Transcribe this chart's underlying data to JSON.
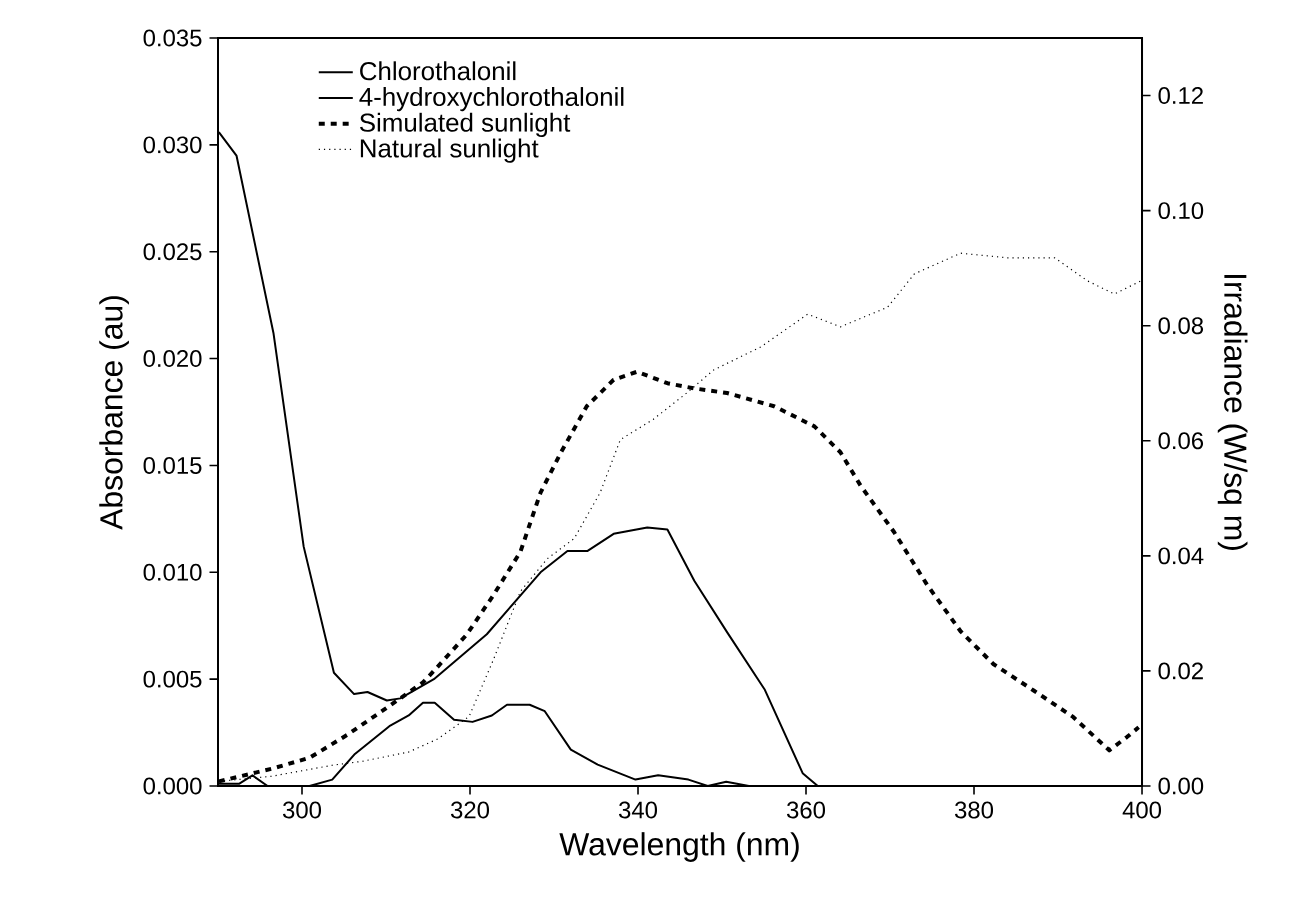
{
  "chart_data": {
    "type": "line",
    "xlabel": "Wavelength (nm)",
    "ylabel": "Absorbance (au)",
    "y2label": "Irradiance (W/sq m)",
    "xlim": [
      290,
      400
    ],
    "xticks": [
      300,
      320,
      340,
      360,
      380,
      400
    ],
    "ylim": [
      0,
      0.035
    ],
    "yticks": [
      {
        "value": 0,
        "label": "0.000"
      },
      {
        "value": 0.005,
        "label": "0.005"
      },
      {
        "value": 0.01,
        "label": "0.010"
      },
      {
        "value": 0.015,
        "label": "0.015"
      },
      {
        "value": 0.02,
        "label": "0.020"
      },
      {
        "value": 0.025,
        "label": "0.025"
      },
      {
        "value": 0.03,
        "label": "0.030"
      },
      {
        "value": 0.035,
        "label": "0.035"
      }
    ],
    "y2lim": [
      0,
      0.13
    ],
    "y2ticks": [
      {
        "value": 0,
        "label": "0.00"
      },
      {
        "value": 0.02,
        "label": "0.02"
      },
      {
        "value": 0.04,
        "label": "0.04"
      },
      {
        "value": 0.06,
        "label": "0.06"
      },
      {
        "value": 0.08,
        "label": "0.08"
      },
      {
        "value": 0.1,
        "label": "0.10"
      },
      {
        "value": 0.12,
        "label": "0.12"
      }
    ],
    "legend": "top left",
    "marker": "none",
    "grid": false,
    "series": [
      {
        "name": "Chlorothalonil",
        "color": "#000000",
        "line_style": "solid",
        "x": [
          290.1,
          292.5,
          294.1,
          295.9,
          300.9,
          303.6,
          306.3,
          310.4,
          312.7,
          314.4,
          315.8,
          318.1,
          320.3,
          322.6,
          324.4,
          327.1,
          328.9,
          332,
          335.2,
          339.7,
          342.4,
          346,
          348.3,
          350.5,
          353.2,
          360
        ],
        "values": [
          0.0001,
          0.0001,
          0.0005,
          0,
          0,
          0.0003,
          0.0015,
          0.0028,
          0.0033,
          0.0039,
          0.0039,
          0.0031,
          0.003,
          0.0033,
          0.0038,
          0.0038,
          0.0035,
          0.0017,
          0.001,
          0.0003,
          0.0005,
          0.0003,
          0,
          0.0002,
          0,
          0
        ]
      },
      {
        "name": "4-hydroxychlorothalonil",
        "color": "#000000",
        "line_style": "solid",
        "x": [
          290.1,
          292.2,
          296.6,
          300.2,
          303.8,
          306.2,
          307.8,
          310.1,
          311.7,
          315.7,
          322,
          328.4,
          331.6,
          334,
          337.1,
          341.1,
          343.5,
          346.7,
          350.6,
          355.1,
          359.6,
          361.4
        ],
        "values": [
          0.0306,
          0.0295,
          0.0212,
          0.0112,
          0.0053,
          0.0043,
          0.0044,
          0.004,
          0.0041,
          0.005,
          0.0071,
          0.01,
          0.011,
          0.011,
          0.0118,
          0.0121,
          0.012,
          0.0096,
          0.0072,
          0.0045,
          0.0006,
          0
        ]
      },
      {
        "name": "Simulated sunlight",
        "color": "#000000",
        "line_style": "dashed",
        "axis": "y2",
        "x": [
          290.1,
          296.4,
          300.9,
          305.4,
          309.9,
          314.4,
          315.7,
          319.6,
          322.8,
          326,
          328.4,
          330.8,
          333.9,
          337.1,
          339.9,
          343.5,
          346.7,
          350.6,
          356.2,
          361,
          364.1,
          366.5,
          370.5,
          374.4,
          378.4,
          382.3,
          387.1,
          391.8,
          396.1,
          398.2,
          399.6
        ],
        "values": [
          0.0008,
          0.003,
          0.0049,
          0.0089,
          0.0134,
          0.018,
          0.02,
          0.0263,
          0.0332,
          0.0407,
          0.051,
          0.0579,
          0.066,
          0.0706,
          0.072,
          0.07,
          0.0691,
          0.0683,
          0.066,
          0.0625,
          0.058,
          0.0522,
          0.0441,
          0.035,
          0.0269,
          0.0212,
          0.0166,
          0.012,
          0.0062,
          0.0085,
          0.0102
        ]
      },
      {
        "name": "Natural sunlight",
        "color": "#000000",
        "line_style": "dotted",
        "axis": "y2",
        "x": [
          290.1,
          296.4,
          303.6,
          307.2,
          312.7,
          316.2,
          319.9,
          322.8,
          326,
          329.2,
          332.4,
          335.5,
          337.9,
          341.8,
          345.8,
          349,
          354.6,
          360.2,
          364.1,
          369.7,
          372.9,
          378.4,
          384,
          389.6,
          393.5,
          396.7,
          399.9
        ],
        "values": [
          0.0008,
          0.0017,
          0.0036,
          0.0043,
          0.0059,
          0.0082,
          0.0121,
          0.022,
          0.0338,
          0.0395,
          0.043,
          0.051,
          0.0602,
          0.0637,
          0.0683,
          0.0723,
          0.0763,
          0.082,
          0.0798,
          0.0832,
          0.089,
          0.0926,
          0.0918,
          0.0918,
          0.0878,
          0.0855,
          0.0878
        ]
      }
    ]
  }
}
